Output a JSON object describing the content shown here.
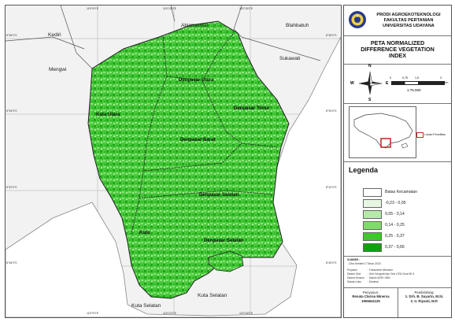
{
  "map": {
    "outside_labels": [
      "Kediri",
      "Mengwi",
      "Abiansemal",
      "Blahbatuh",
      "Sukawati",
      "Kuta Selatan"
    ],
    "district_labels": [
      "Denpasar Utara",
      "Kuta Utara",
      "Denpasar Timur",
      "Denpasar Barat",
      "Denpasar Selatan",
      "Kuta",
      "Denpasar Selatan"
    ],
    "longitude_ticks": [
      "115°9'0\"E",
      "115°12'0\"E",
      "115°15'0\"E"
    ],
    "latitude_ticks": [
      "8°36'0\"S",
      "8°39'0\"S",
      "8°42'0\"S",
      "8°45'0\"S"
    ],
    "colors": {
      "land": "#f2f2f2",
      "boundary": "#333333",
      "sea": "#ffffff"
    }
  },
  "institution": {
    "line1": "PRODI AGROEKOTEKNOLOGI",
    "line2": "FAKULTAS PERTANIAN",
    "line3": "UNIVERSITAS UDAYANA",
    "logo_icon": "university-seal-icon"
  },
  "title": {
    "line1": "PETA NORMALIZED",
    "line2": "DIFFERENCE VEGETATION",
    "line3": "INDEX"
  },
  "navigation": {
    "compass": {
      "n": "N",
      "s": "S",
      "e": "E",
      "w": "W"
    },
    "scale_ticks": [
      "0",
      "0,75",
      "1,5",
      "3"
    ],
    "scale_unit": "Km",
    "scale_ratio": "1:75.000"
  },
  "inset": {
    "location_label": "Lokasi Penelitian",
    "colors": {
      "island": "#ffffff",
      "sea": "#ffffff",
      "marker": "#cc2222"
    }
  },
  "legend": {
    "heading": "Legenda",
    "items": [
      {
        "label": "Batas Kecamatan",
        "color": "#ffffff"
      },
      {
        "label": "-0,23 - 0,05",
        "color": "#e6f7e2"
      },
      {
        "label": "0,05 - 0,14",
        "color": "#b6eaa8"
      },
      {
        "label": "0,14 - 0,25",
        "color": "#7fdc6a"
      },
      {
        "label": "0,25 - 0,37",
        "color": "#3fc72d"
      },
      {
        "label": "0,37 - 0,66",
        "color": "#13a00f"
      }
    ]
  },
  "source": {
    "heading": "SUMBER :",
    "line1": "- Citra Sentinel 2 Tahun 2023",
    "rows": [
      [
        "Proyeksi",
        ": Transverse Mercator"
      ],
      [
        "Sistem Grid",
        ": Grid Geografi dan Grid UTM Zona 50 S"
      ],
      [
        "Datum Horizon",
        ": Datum WGS 1984"
      ],
      [
        "Satuan Ukur",
        ": Desimal"
      ]
    ]
  },
  "credits": {
    "author_heading": "Penyusun:",
    "author_name": "Renata Clarisa Minerva",
    "author_id": "1906541125",
    "advisor_heading": "Pembimbing:",
    "advisor1": "1. Drh. B. Suyarto, M.Si.",
    "advisor2": "2. Ir. Riyanti, M.P."
  }
}
